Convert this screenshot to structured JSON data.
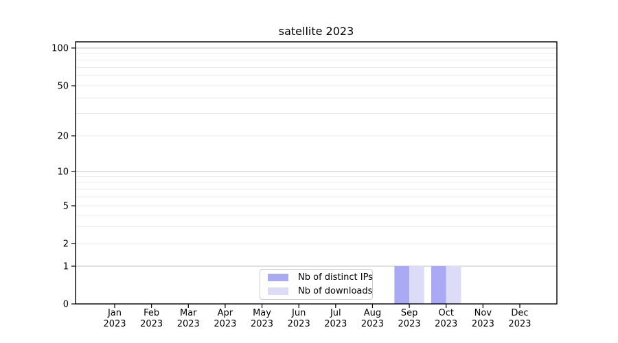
{
  "colors": {
    "distinct_ips": "#a9a9f4",
    "downloads": "#dcdcf9",
    "major_grid": "#c3c3c3",
    "minor_grid": "#ebebeb",
    "spine": "#000000",
    "legend_border": "#cbcbcb",
    "text": "#000000"
  },
  "legend": {
    "items": [
      {
        "label": "Nb of distinct IPs",
        "color_key": "distinct_ips"
      },
      {
        "label": "Nb of downloads",
        "color_key": "downloads"
      }
    ]
  },
  "chart_data": {
    "type": "bar",
    "title": "satellite 2023",
    "categories": [
      "Jan 2023",
      "Feb 2023",
      "Mar 2023",
      "Apr 2023",
      "May 2023",
      "Jun 2023",
      "Jul 2023",
      "Aug 2023",
      "Sep 2023",
      "Oct 2023",
      "Nov 2023",
      "Dec 2023"
    ],
    "x_tick_months": [
      "Jan",
      "Feb",
      "Mar",
      "Apr",
      "May",
      "Jun",
      "Jul",
      "Aug",
      "Sep",
      "Oct",
      "Nov",
      "Dec"
    ],
    "x_tick_year": "2023",
    "series": [
      {
        "name": "Nb of distinct IPs",
        "color_key": "distinct_ips",
        "values": [
          0,
          0,
          0,
          0,
          0,
          0,
          0,
          0,
          1,
          1,
          0,
          0
        ]
      },
      {
        "name": "Nb of downloads",
        "color_key": "downloads",
        "values": [
          0,
          0,
          0,
          0,
          0,
          0,
          0,
          0,
          1,
          1,
          0,
          0
        ]
      }
    ],
    "y_axis": {
      "scale": "symlog",
      "labeled_ticks": [
        0,
        1,
        2,
        5,
        10,
        20,
        50,
        100
      ],
      "major_grid_values": [
        1,
        10,
        100
      ],
      "minor_grid_values": [
        2,
        3,
        4,
        5,
        6,
        7,
        8,
        9,
        20,
        30,
        40,
        50,
        60,
        70,
        80,
        90
      ],
      "ylim": [
        0,
        130
      ]
    },
    "legend_position": "inside lower center",
    "grid": true
  }
}
